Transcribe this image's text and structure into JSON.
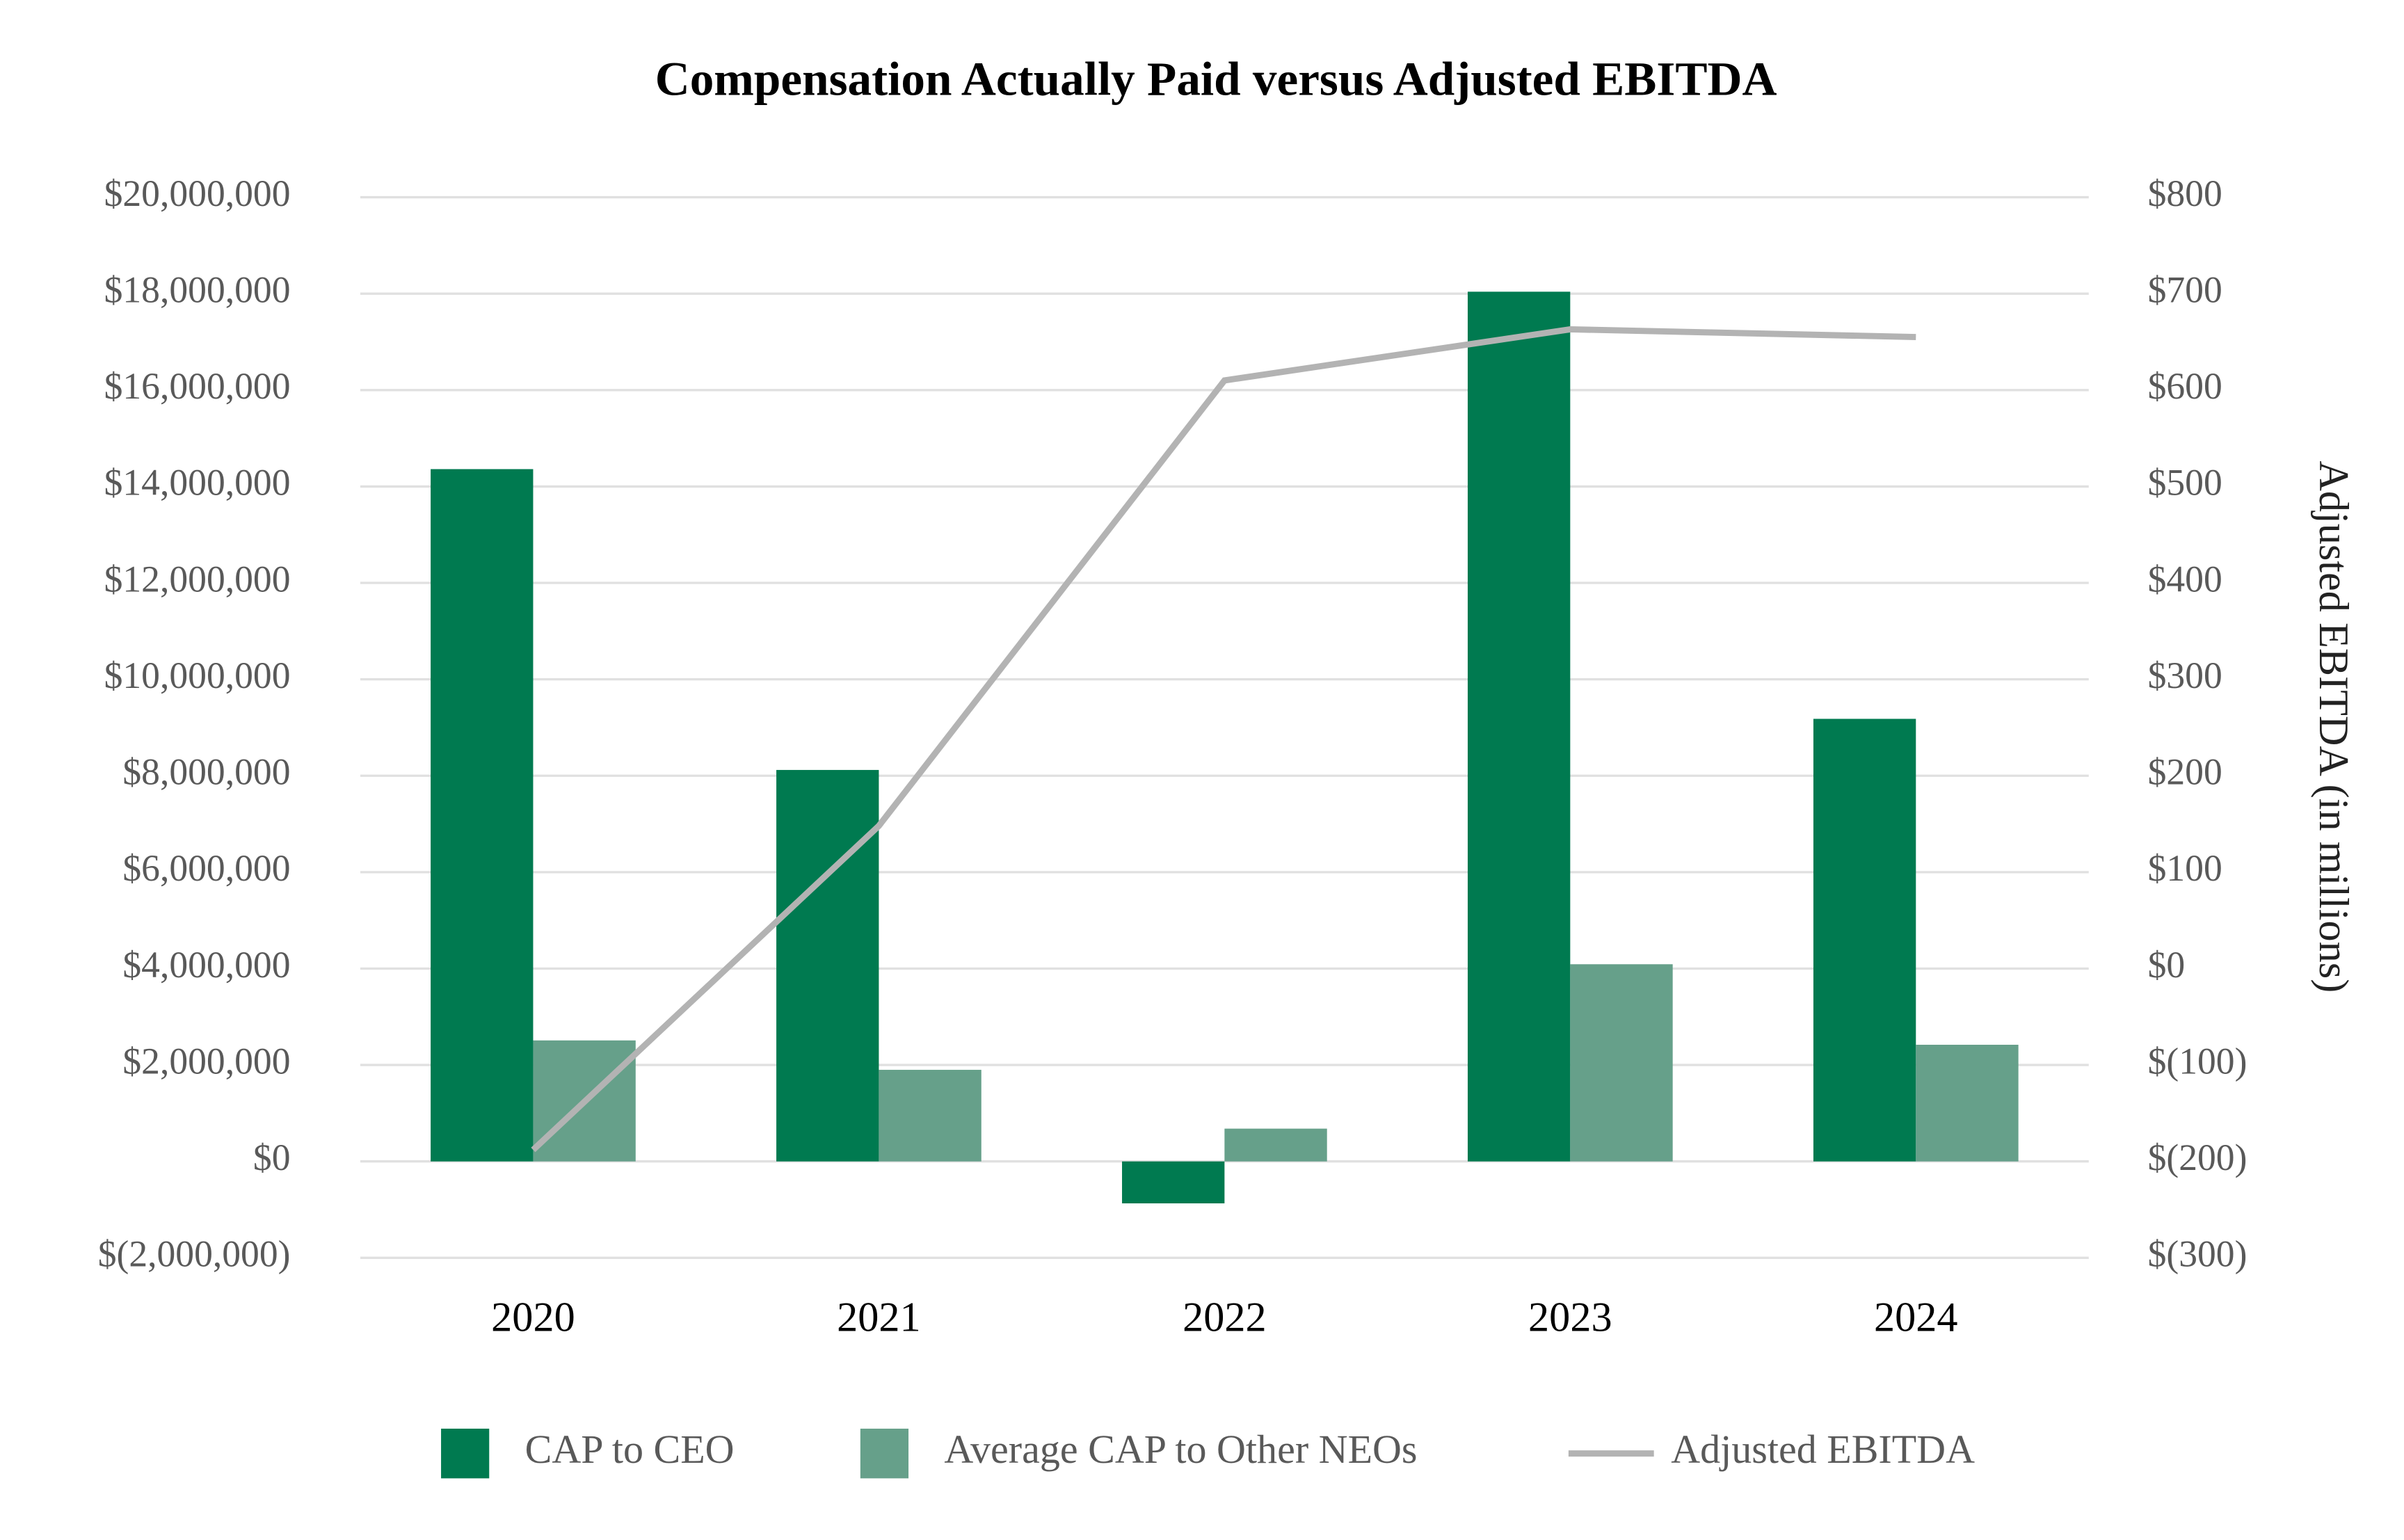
{
  "chart_data": {
    "type": "bar",
    "title": "Compensation Actually Paid versus Adjusted EBITDA",
    "categories": [
      "2020",
      "2021",
      "2022",
      "2023",
      "2024"
    ],
    "series": [
      {
        "name": "CAP to CEO",
        "color": "#007a50",
        "values": [
          14360000,
          8120000,
          -870000,
          18040000,
          9180000
        ]
      },
      {
        "name": "Average CAP to Other NEOs",
        "color": "#66a08a",
        "values": [
          2510000,
          1900000,
          680000,
          4090000,
          2420000
        ]
      },
      {
        "name": "Adjusted EBITDA",
        "type": "line",
        "axis": "y2",
        "color": "#b3b3b3",
        "values": [
          -188,
          148,
          610,
          663,
          655
        ]
      }
    ],
    "y2_label": "Adjusted EBITDA (in millions)",
    "ylim": [
      -2000000,
      20000000
    ],
    "yticks": [
      {
        "value": -2000000,
        "label": "$(2,000,000)"
      },
      {
        "value": 0,
        "label": "$0"
      },
      {
        "value": 2000000,
        "label": "$2,000,000"
      },
      {
        "value": 4000000,
        "label": "$4,000,000"
      },
      {
        "value": 6000000,
        "label": "$6,000,000"
      },
      {
        "value": 8000000,
        "label": "$8,000,000"
      },
      {
        "value": 10000000,
        "label": "$10,000,000"
      },
      {
        "value": 12000000,
        "label": "$12,000,000"
      },
      {
        "value": 14000000,
        "label": "$14,000,000"
      },
      {
        "value": 16000000,
        "label": "$16,000,000"
      },
      {
        "value": 18000000,
        "label": "$18,000,000"
      },
      {
        "value": 20000000,
        "label": "$20,000,000"
      }
    ],
    "y2lim": [
      -300,
      800
    ],
    "y2ticks": [
      {
        "value": -300,
        "label": "$(300)"
      },
      {
        "value": -200,
        "label": "$(200)"
      },
      {
        "value": -100,
        "label": "$(100)"
      },
      {
        "value": 0,
        "label": "$0"
      },
      {
        "value": 100,
        "label": "$100"
      },
      {
        "value": 200,
        "label": "$200"
      },
      {
        "value": 300,
        "label": "$300"
      },
      {
        "value": 400,
        "label": "$400"
      },
      {
        "value": 500,
        "label": "$500"
      },
      {
        "value": 600,
        "label": "$600"
      },
      {
        "value": 700,
        "label": "$700"
      },
      {
        "value": 800,
        "label": "$800"
      }
    ],
    "grid": true,
    "legend": "bottom"
  }
}
